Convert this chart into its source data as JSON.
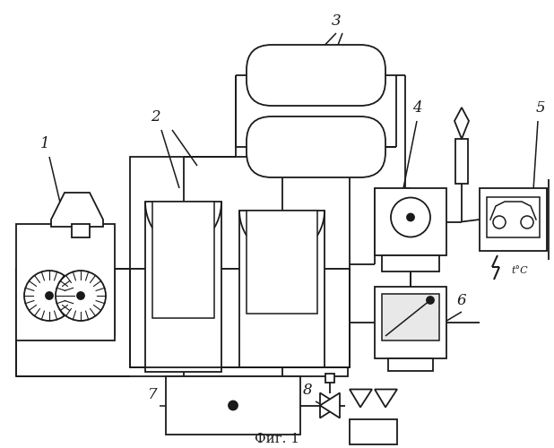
{
  "title": "Фиг. 1",
  "bg_color": "#ffffff",
  "line_color": "#1a1a1a",
  "lw": 1.3
}
